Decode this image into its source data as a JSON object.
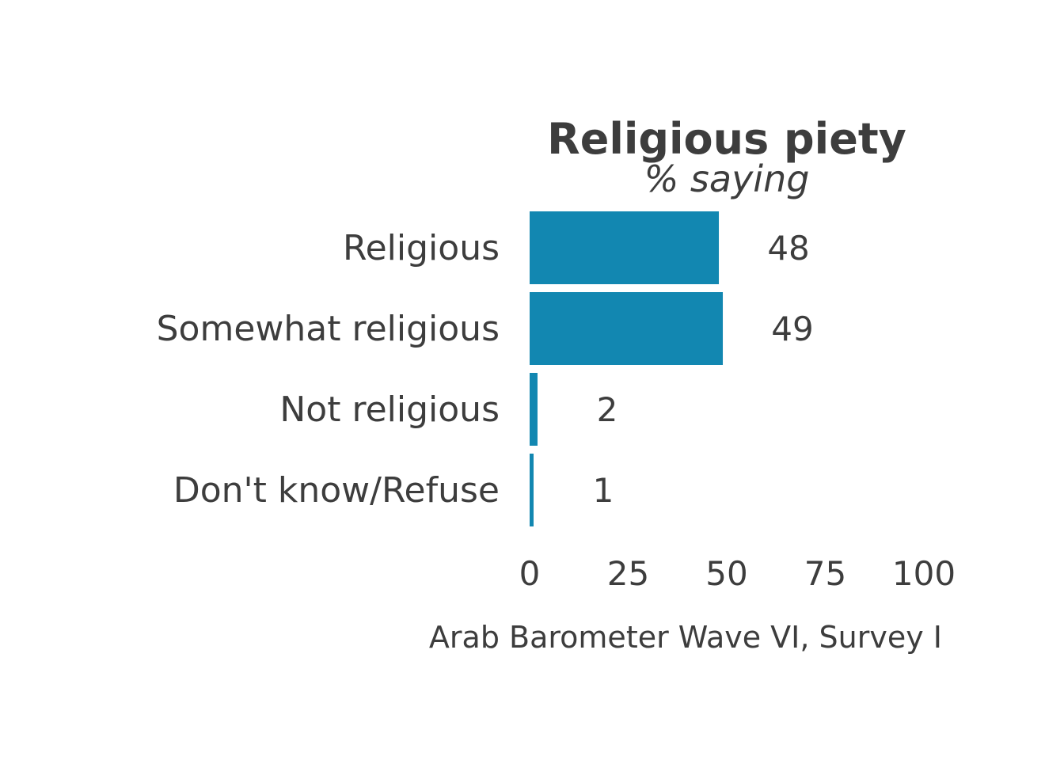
{
  "chart_data": {
    "type": "bar",
    "orientation": "horizontal",
    "title": "Religious piety",
    "subtitle": "% saying",
    "caption": "Arab Barometer Wave VI, Survey I",
    "categories": [
      "Religious",
      "Somewhat religious",
      "Not religious",
      "Don't know/Refuse"
    ],
    "values": [
      48,
      49,
      2,
      1
    ],
    "value_labels": [
      "48",
      "49",
      "2",
      "1"
    ],
    "xlim": [
      0,
      100
    ],
    "x_ticks": [
      0,
      25,
      50,
      75,
      100
    ],
    "x_tick_labels": [
      "0",
      "25",
      "50",
      "75",
      "100"
    ],
    "bar_color": "#1287b1",
    "text_color": "#3d3d3d",
    "grid": false,
    "legend": "none"
  }
}
